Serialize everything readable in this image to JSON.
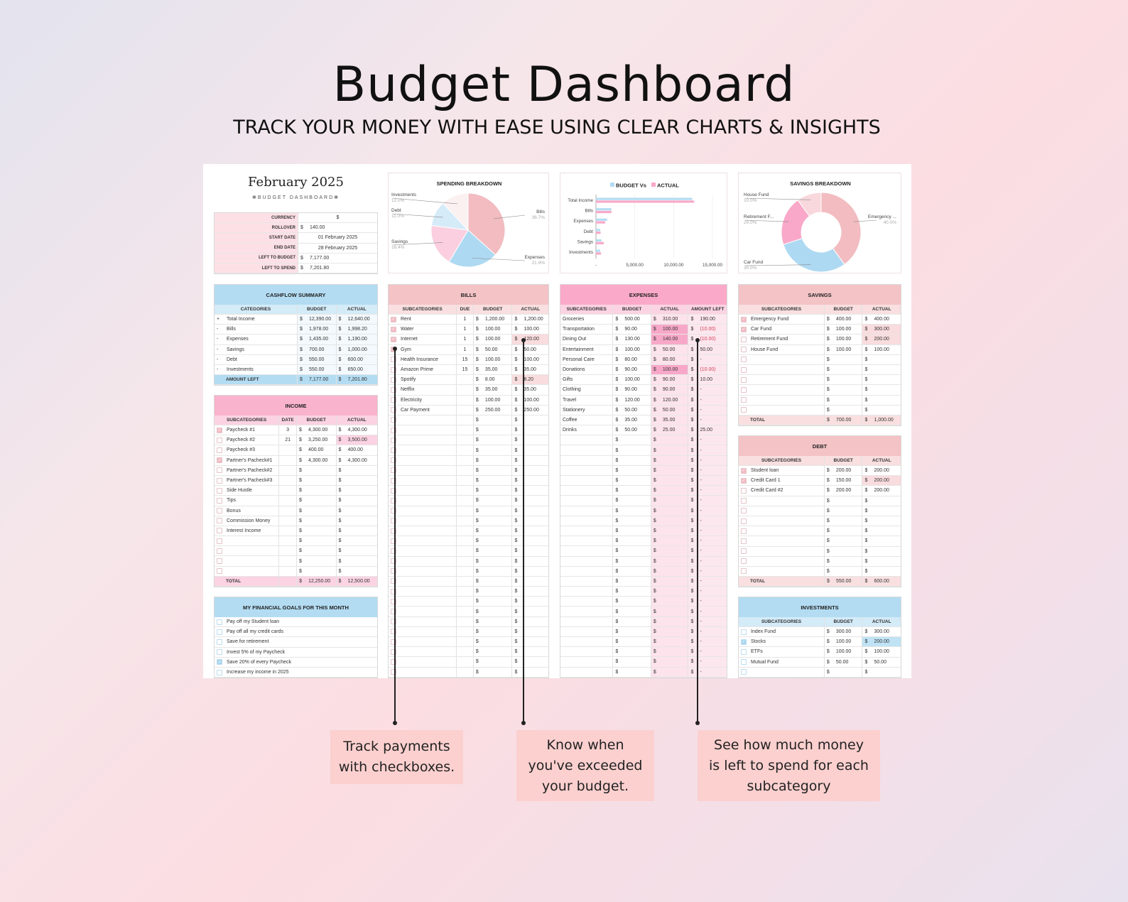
{
  "header": {
    "title": "Budget Dashboard",
    "subtitle": "TRACK YOUR MONEY WITH EASE USING CLEAR CHARTS & INSIGHTS"
  },
  "sheet": {
    "month": "February 2025",
    "subtitle": "❋BUDGET DASHBOARD❋",
    "currency_symbol": "$"
  },
  "info": [
    {
      "label": "CURRENCY",
      "dollar": false,
      "value": "$"
    },
    {
      "label": "ROLLOVER",
      "dollar": true,
      "value": "140.00"
    },
    {
      "label": "START DATE",
      "dollar": false,
      "value": "01 February 2025"
    },
    {
      "label": "END DATE",
      "dollar": false,
      "value": "28 February 2025"
    },
    {
      "label": "LEFT TO BUDGET",
      "dollar": true,
      "value": "7,177.00"
    },
    {
      "label": "LEFT TO SPEND",
      "dollar": true,
      "value": "7,201.80"
    }
  ],
  "tables": {
    "cashflow": {
      "title": "CASHFLOW SUMMARY",
      "headers": [
        "CATEGORIES",
        "BUDGET",
        "ACTUAL"
      ],
      "rows": [
        {
          "sign": "+",
          "cells": [
            "Total Income",
            "12,390.00",
            "12,640.00"
          ]
        },
        {
          "sign": "-",
          "cells": [
            "Bills",
            "1,978.00",
            "1,998.20"
          ]
        },
        {
          "sign": "-",
          "cells": [
            "Expenses",
            "1,435.00",
            "1,190.00"
          ]
        },
        {
          "sign": "-",
          "cells": [
            "Savings",
            "700.00",
            "1,000.00"
          ]
        },
        {
          "sign": "-",
          "cells": [
            "Debt",
            "550.00",
            "600.00"
          ]
        },
        {
          "sign": "-",
          "cells": [
            "Investments",
            "550.00",
            "650.00"
          ]
        }
      ],
      "total": [
        "AMOUNT LEFT",
        "7,177.00",
        "7,201.80"
      ]
    },
    "income": {
      "title": "INCOME",
      "headers": [
        "SUBCATEGORIES",
        "DATE",
        "BUDGET",
        "ACTUAL"
      ],
      "rows": [
        {
          "checked": true,
          "cells": [
            "Paycheck #1",
            "3",
            "4,300.00",
            "4,300.00"
          ]
        },
        {
          "checked": false,
          "cells": [
            "Paycheck #2",
            "21",
            "3,250.00",
            "3,500.00"
          ],
          "hl": [
            3
          ]
        },
        {
          "checked": false,
          "cells": [
            "Paycheck #3",
            "",
            "400.00",
            "400.00"
          ]
        },
        {
          "checked": true,
          "cells": [
            "Partner's Pacheck#1",
            "",
            "4,300.00",
            "4,300.00"
          ]
        },
        {
          "checked": false,
          "cells": [
            "Partner's Pacheck#2",
            "",
            "",
            ""
          ]
        },
        {
          "checked": false,
          "cells": [
            "Partner's Pacheck#3",
            "",
            "",
            ""
          ]
        },
        {
          "checked": false,
          "cells": [
            "Side Hustle",
            "",
            "",
            ""
          ]
        },
        {
          "checked": false,
          "cells": [
            "Tips",
            "",
            "",
            ""
          ]
        },
        {
          "checked": false,
          "cells": [
            "Bonus",
            "",
            "",
            ""
          ]
        },
        {
          "checked": false,
          "cells": [
            "Commission Money",
            "",
            "",
            ""
          ]
        },
        {
          "checked": false,
          "cells": [
            "Interest Income",
            "",
            "",
            ""
          ]
        }
      ],
      "empty_rows": 4,
      "total": [
        "TOTAL",
        "",
        "12,250.00",
        "12,500.00"
      ]
    },
    "goals": {
      "title": "MY FINANCIAL GOALS FOR THIS MONTH",
      "headers": [],
      "rows": [
        {
          "checked": false,
          "cells": [
            "Pay off my Student loan"
          ]
        },
        {
          "checked": false,
          "cells": [
            "Pay off all my credit cards"
          ]
        },
        {
          "checked": false,
          "cells": [
            "Save for retirement"
          ]
        },
        {
          "checked": false,
          "cells": [
            "Invest 5% of my Paycheck"
          ]
        },
        {
          "checked": true,
          "cells": [
            "Save 20% of every Paycheck"
          ]
        },
        {
          "checked": false,
          "cells": [
            "Increase my income in 2025"
          ]
        }
      ]
    },
    "bills": {
      "title": "BILLS",
      "headers": [
        "SUBCATEGORIES",
        "DUE",
        "BUDGET",
        "ACTUAL"
      ],
      "rows": [
        {
          "checked": true,
          "cells": [
            "Rent",
            "1",
            "1,200.00",
            "1,200.00"
          ]
        },
        {
          "checked": true,
          "cells": [
            "Water",
            "1",
            "100.00",
            "100.00"
          ]
        },
        {
          "checked": true,
          "cells": [
            "Internet",
            "1",
            "100.00",
            "120.00"
          ],
          "hl": [
            3
          ]
        },
        {
          "checked": true,
          "cells": [
            "Gym",
            "1",
            "50.00",
            "50.00"
          ]
        },
        {
          "checked": false,
          "cells": [
            "Health Insurance",
            "15",
            "100.00",
            "100.00"
          ]
        },
        {
          "checked": false,
          "cells": [
            "Amazon Prime",
            "15",
            "35.00",
            "35.00"
          ]
        },
        {
          "checked": false,
          "cells": [
            "Spotify",
            "",
            "8.00",
            "8.20"
          ],
          "hl": [
            3
          ]
        },
        {
          "checked": false,
          "cells": [
            "Netflix",
            "",
            "35.00",
            "35.00"
          ]
        },
        {
          "checked": false,
          "cells": [
            "Electricity",
            "",
            "100.00",
            "100.00"
          ]
        },
        {
          "checked": false,
          "cells": [
            "Car Payment",
            "",
            "250.00",
            "250.00"
          ]
        }
      ],
      "empty_rows": 26
    },
    "expenses": {
      "title": "EXPENSES",
      "headers": [
        "SUBCATEGORIES",
        "BUDGET",
        "ACTUAL",
        "AMOUNT LEFT"
      ],
      "rows": [
        {
          "cells": [
            "Groceries",
            "500.00",
            "310.00",
            "190.00"
          ]
        },
        {
          "cells": [
            "Transportation",
            "90.00",
            "100.00",
            "(10.00)"
          ],
          "hl": [
            2
          ]
        },
        {
          "cells": [
            "Dining Out",
            "130.00",
            "140.00",
            "(10.00)"
          ],
          "hl": [
            2
          ]
        },
        {
          "cells": [
            "Entertainment",
            "100.00",
            "50.00",
            "50.00"
          ]
        },
        {
          "cells": [
            "Personal Care",
            "80.00",
            "80.00",
            "-"
          ]
        },
        {
          "cells": [
            "Donations",
            "90.00",
            "100.00",
            "(10.00)"
          ],
          "hl": [
            2
          ]
        },
        {
          "cells": [
            "Gifts",
            "100.00",
            "90.00",
            "10.00"
          ]
        },
        {
          "cells": [
            "Clothing",
            "90.00",
            "90.00",
            "-"
          ]
        },
        {
          "cells": [
            "Travel",
            "120.00",
            "120.00",
            "-"
          ]
        },
        {
          "cells": [
            "Stationery",
            "50.00",
            "50.00",
            "-"
          ]
        },
        {
          "cells": [
            "Coffee",
            "35.00",
            "35.00",
            "-"
          ]
        },
        {
          "cells": [
            "Drinks",
            "50.00",
            "25.00",
            "25.00"
          ]
        }
      ],
      "empty_rows": 24,
      "empty_left": "-"
    },
    "savings": {
      "title": "SAVINGS",
      "headers": [
        "SUBCATEGORIES",
        "BUDGET",
        "ACTUAL"
      ],
      "rows": [
        {
          "checked": true,
          "cells": [
            "Emergency Fund",
            "400.00",
            "400.00"
          ]
        },
        {
          "checked": true,
          "cells": [
            "Car Fund",
            "100.00",
            "300.00"
          ],
          "hl": [
            2
          ]
        },
        {
          "checked": false,
          "cells": [
            "Retirement Fund",
            "100.00",
            "200.00"
          ],
          "hl": [
            2
          ]
        },
        {
          "checked": false,
          "cells": [
            "House Fund",
            "100.00",
            "100.00"
          ]
        }
      ],
      "empty_rows": 6,
      "total": [
        "TOTAL",
        "700.00",
        "1,000.00"
      ]
    },
    "debt": {
      "title": "DEBT",
      "headers": [
        "SUBCATEGORIES",
        "BUDGET",
        "ACTUAL"
      ],
      "rows": [
        {
          "checked": true,
          "cells": [
            "Student loan",
            "200.00",
            "200.00"
          ]
        },
        {
          "checked": true,
          "cells": [
            "Credit Card 1",
            "150.00",
            "200.00"
          ],
          "hl": [
            2
          ]
        },
        {
          "checked": false,
          "cells": [
            "Credit Card #2",
            "200.00",
            "200.00"
          ]
        }
      ],
      "empty_rows": 8,
      "total": [
        "TOTAL",
        "550.00",
        "600.00"
      ]
    },
    "investments": {
      "title": "INVESTMENTS",
      "headers": [
        "SUBCATEGORIES",
        "BUDGET",
        "ACTUAL"
      ],
      "rows": [
        {
          "checked": false,
          "cells": [
            "Index Fund",
            "300.00",
            "300.00"
          ]
        },
        {
          "checked": true,
          "cells": [
            "Stocks",
            "100.00",
            "200.00"
          ],
          "hl": [
            2
          ]
        },
        {
          "checked": false,
          "cells": [
            "ETFs",
            "100.00",
            "100.00"
          ]
        },
        {
          "checked": false,
          "cells": [
            "Mutual Fund",
            "50.00",
            "50.00"
          ]
        }
      ],
      "empty_rows": 1
    }
  },
  "chart_data": [
    {
      "type": "pie",
      "title": "SPENDING BREAKDOWN",
      "labels": [
        "Bills",
        "Expenses",
        "Savings",
        "Debt",
        "Investments"
      ],
      "values": [
        36.7,
        21.9,
        18.4,
        11.0,
        12.0
      ],
      "value_labels": [
        "36.7%",
        "21.9%",
        "18.4%",
        "11.0%",
        "12.0%"
      ],
      "colors": [
        "#f2bcc0",
        "#aed9f2",
        "#fbcfe0",
        "#d6ebf8",
        "#fcf1f1"
      ]
    },
    {
      "type": "bar",
      "orientation": "horizontal",
      "title_series": [
        "BUDGET Vs",
        "ACTUAL"
      ],
      "categories": [
        "Total Income",
        "Bills",
        "Expenses",
        "Debt",
        "Savings",
        "Investments"
      ],
      "series": [
        {
          "name": "BUDGET Vs",
          "color": "#b3dcf2",
          "values": [
            12390,
            1978,
            1435,
            550,
            700,
            550
          ]
        },
        {
          "name": "ACTUAL",
          "color": "#f7a8c8",
          "values": [
            12640,
            1998.2,
            1190,
            600,
            1000,
            650
          ]
        }
      ],
      "xlim": [
        0,
        15000
      ],
      "xticks": [
        0,
        5000,
        10000,
        15000
      ],
      "xtick_labels": [
        "-",
        "5,000.00",
        "10,000.00",
        "15,000.00"
      ],
      "grid": true,
      "legend": "top"
    },
    {
      "type": "pie",
      "donut": true,
      "title": "SAVINGS BREAKDOWN",
      "labels": [
        "Emergency ...",
        "Car Fund",
        "Retirement F...",
        "House Fund"
      ],
      "values": [
        40,
        30,
        20,
        10
      ],
      "value_labels": [
        "40.0%",
        "30.0%",
        "20.0%",
        "10.0%"
      ],
      "colors": [
        "#f2bcc0",
        "#aed9f2",
        "#f9a8c9",
        "#f8d8dc"
      ]
    }
  ],
  "callouts": [
    {
      "text": "Track payments with checkboxes."
    },
    {
      "text": "Know when you've exceeded your budget."
    },
    {
      "text": "See how much money is left to spend for each subcategory"
    }
  ]
}
